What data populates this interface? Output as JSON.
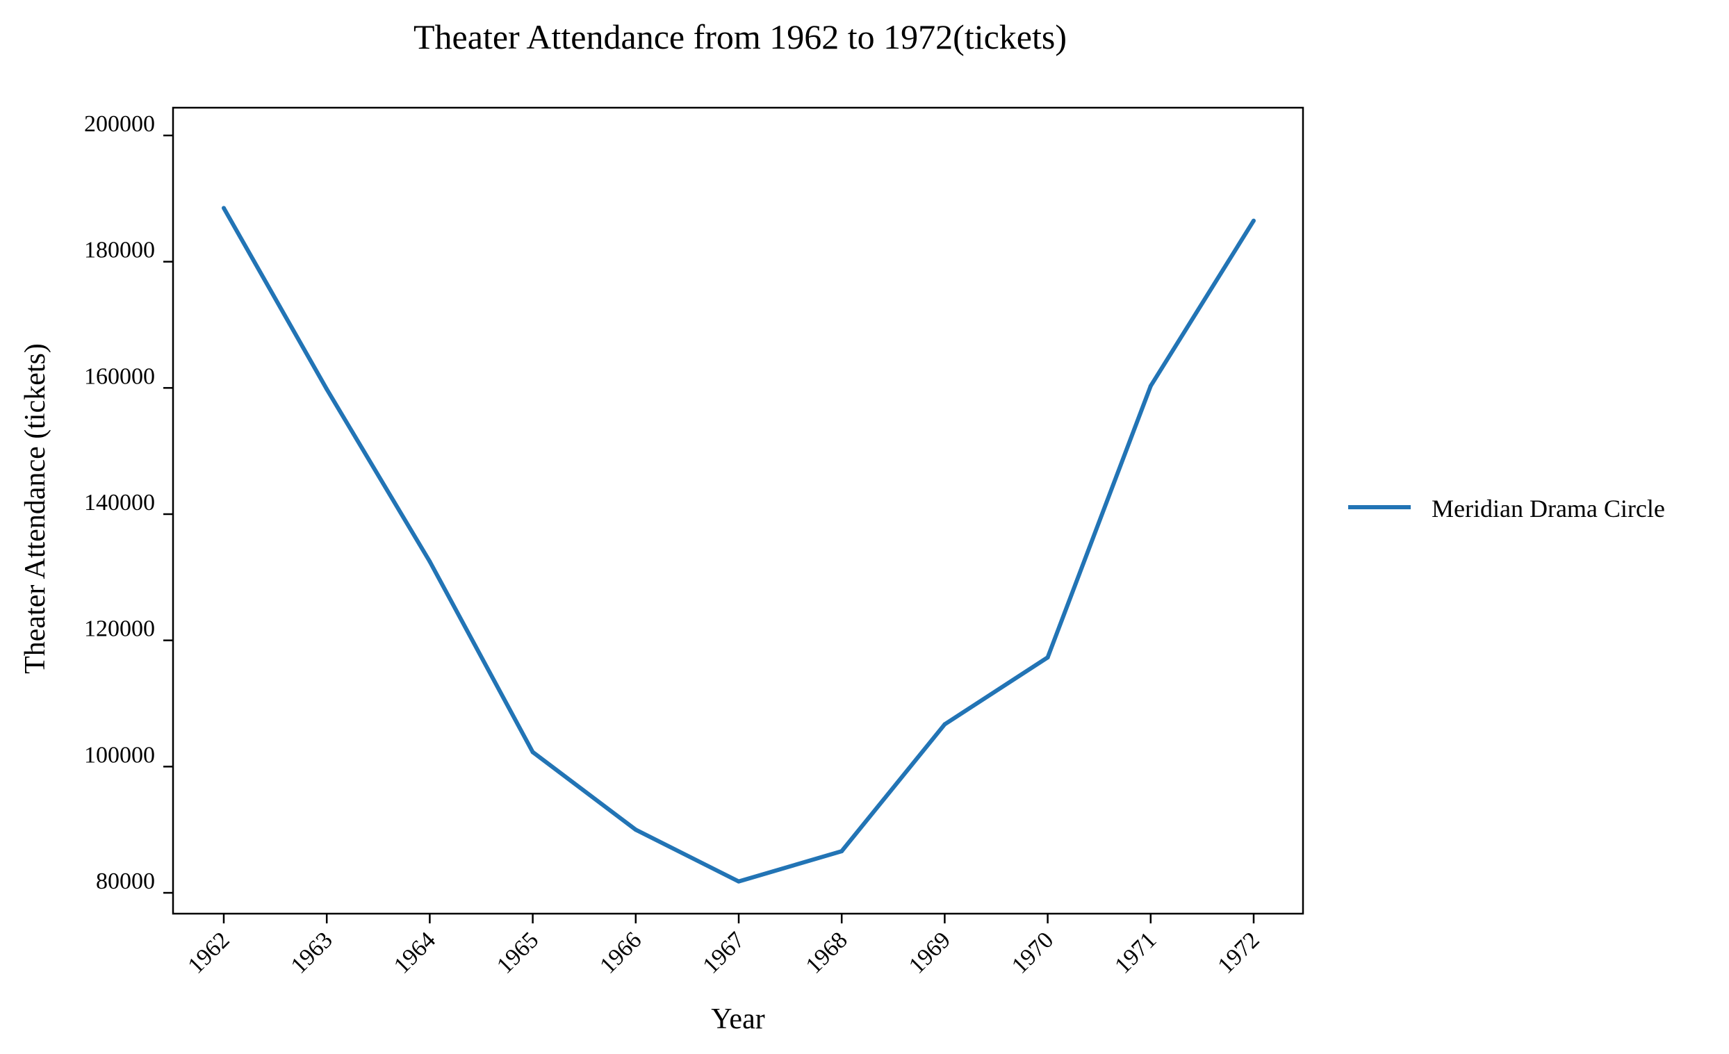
{
  "chart_data": {
    "type": "line",
    "title": "Theater Attendance from 1962 to 1972(tickets)",
    "xlabel": "Year",
    "ylabel": "Theater Attendance (tickets)",
    "categories": [
      "1962",
      "1963",
      "1964",
      "1965",
      "1966",
      "1967",
      "1968",
      "1969",
      "1970",
      "1971",
      "1972"
    ],
    "series": [
      {
        "name": "Meridian Drama Circle",
        "color": "#2274b5",
        "values": [
          188500,
          159800,
          132500,
          102300,
          90000,
          81800,
          86600,
          106700,
          117300,
          160300,
          186500
        ]
      }
    ],
    "yticks": [
      80000,
      100000,
      120000,
      140000,
      160000,
      180000,
      200000
    ],
    "ylim": [
      76700,
      204400
    ],
    "grid": false,
    "legend_position": "right"
  }
}
